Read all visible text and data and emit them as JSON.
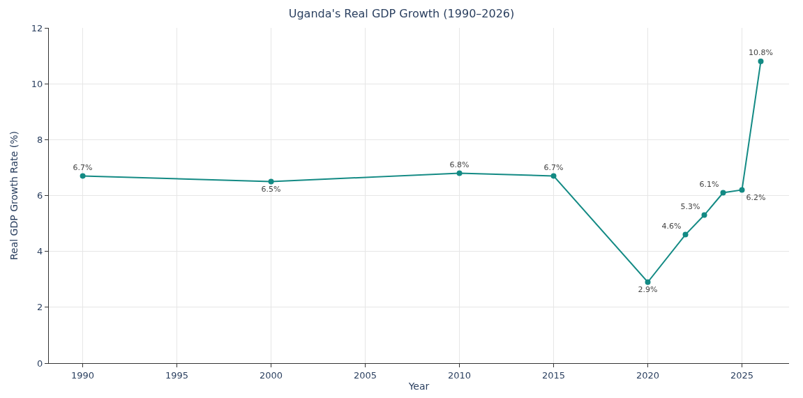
{
  "chart_data": {
    "type": "line",
    "title": "Uganda's Real GDP Growth (1990–2026)",
    "xlabel": "Year",
    "ylabel": "Real GDP Growth Rate (%)",
    "x": [
      1990,
      2000,
      2010,
      2015,
      2020,
      2022,
      2023,
      2024,
      2025,
      2026
    ],
    "series": [
      {
        "color": "#138a84",
        "values": [
          6.7,
          6.5,
          6.8,
          6.7,
          2.9,
          4.6,
          5.3,
          6.1,
          6.2,
          10.8
        ],
        "value_labels": [
          "6.7%",
          "6.5%",
          "6.8%",
          "6.7%",
          "2.9%",
          "4.6%",
          "5.3%",
          "6.1%",
          "6.2%",
          "10.8%"
        ]
      }
    ],
    "xlim": [
      1988.2,
      2027.5
    ],
    "xticks": [
      1990,
      1995,
      2000,
      2005,
      2010,
      2015,
      2020,
      2025
    ],
    "ylim": [
      0,
      12
    ],
    "yticks": [
      0,
      2,
      4,
      6,
      8,
      10,
      12
    ],
    "grid": true,
    "marker": "circle",
    "line_style": "solid"
  }
}
